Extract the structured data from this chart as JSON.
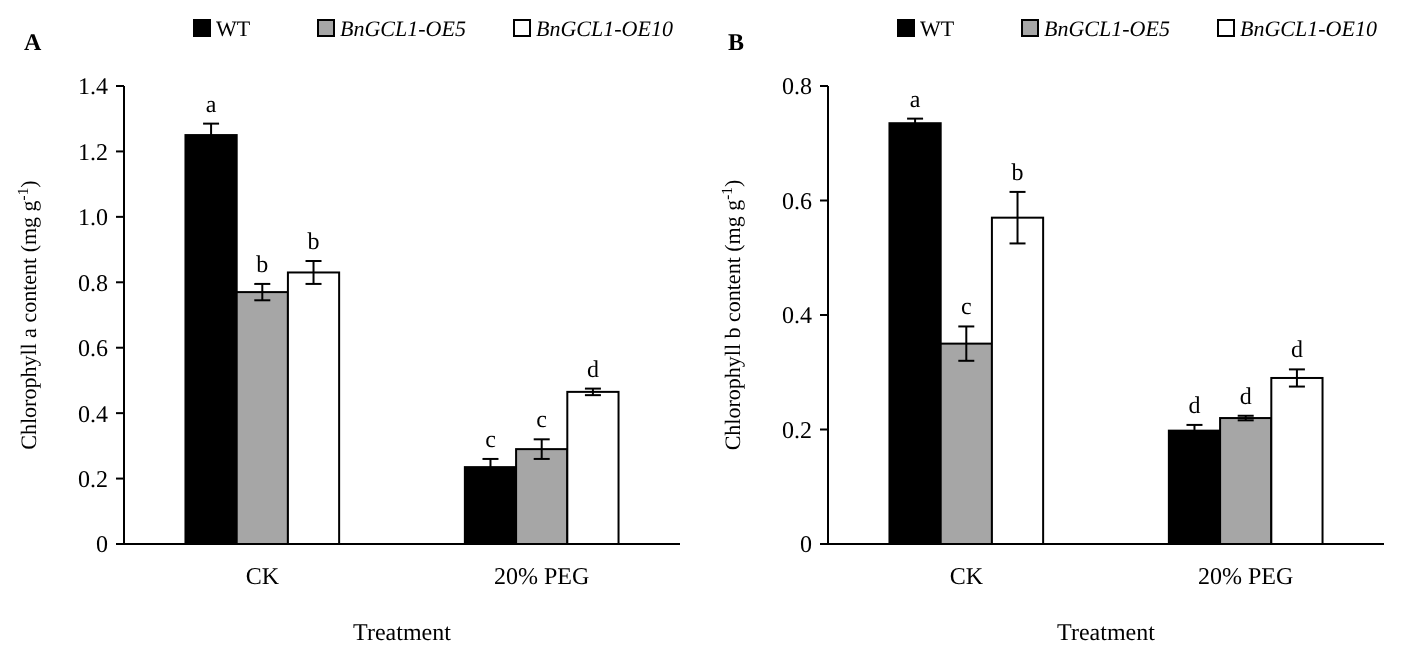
{
  "chart_data": [
    {
      "type": "bar",
      "title": "A",
      "categories": [
        "CK",
        "20% PEG"
      ],
      "xlabel": "Treatment",
      "ylabel": "Chlorophyll a content (mg g$^{-1}$)",
      "ylim": [
        0,
        1.4
      ],
      "yticks": [
        0,
        0.2,
        0.4,
        0.6,
        0.8,
        {
          "value": 1,
          "label": "1.0"
        },
        1.2,
        1.4
      ],
      "grid": false,
      "legend": "top",
      "series": [
        {
          "name": "WT",
          "color": "#000000",
          "values": [
            1.25,
            0.235
          ],
          "errors": [
            0.035,
            0.025
          ],
          "value_labels": [
            "a",
            "c"
          ]
        },
        {
          "name": "BnGCL1-OE5",
          "color": "#a6a6a6",
          "values": [
            0.77,
            0.29
          ],
          "errors": [
            0.025,
            0.03
          ],
          "value_labels": [
            "b",
            "c"
          ]
        },
        {
          "name": "BnGCL1-OE10",
          "color": "#ffffff",
          "values": [
            0.83,
            0.465
          ],
          "errors": [
            0.035,
            0.01
          ],
          "value_labels": [
            "b",
            "d"
          ]
        }
      ]
    },
    {
      "type": "bar",
      "title": "B",
      "categories": [
        "CK",
        "20% PEG"
      ],
      "xlabel": "Treatment",
      "ylabel": "Chlorophyll b content (mg g$^{-1}$)",
      "ylim": [
        0,
        0.8
      ],
      "yticks": [
        0,
        0.2,
        0.4,
        0.6,
        0.8
      ],
      "grid": false,
      "legend": "top",
      "series": [
        {
          "name": "WT",
          "color": "#000000",
          "values": [
            0.735,
            0.198
          ],
          "errors": [
            0.008,
            0.01
          ],
          "value_labels": [
            "a",
            "d"
          ]
        },
        {
          "name": "BnGCL1-OE5",
          "color": "#a6a6a6",
          "values": [
            0.35,
            0.22
          ],
          "errors": [
            0.03,
            0.004
          ],
          "value_labels": [
            "c",
            "d"
          ]
        },
        {
          "name": "BnGCL1-OE10",
          "color": "#ffffff",
          "values": [
            0.57,
            0.29
          ],
          "errors": [
            0.045,
            0.015
          ],
          "value_labels": [
            "b",
            "d"
          ]
        }
      ]
    }
  ]
}
